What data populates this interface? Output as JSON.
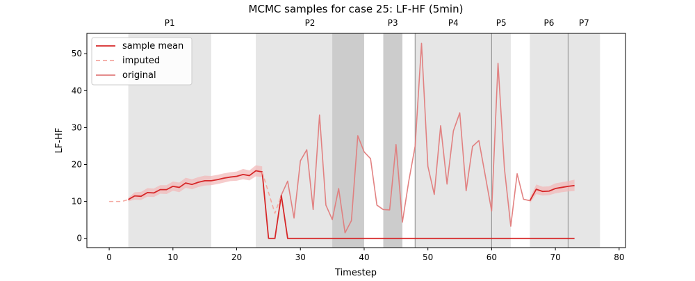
{
  "chart_data": {
    "type": "line",
    "title": "MCMC samples for case 25: LF-HF (5min)",
    "xlabel": "Timestep",
    "ylabel": "LF-HF",
    "xlim": [
      -3.5,
      81
    ],
    "ylim": [
      -2.5,
      55.5
    ],
    "xticks": [
      0,
      10,
      20,
      30,
      40,
      50,
      60,
      70,
      80
    ],
    "yticks": [
      0,
      10,
      20,
      30,
      40,
      50
    ],
    "grid": false,
    "legend_position": "top-left",
    "legend": [
      {
        "label": "sample mean",
        "style": "solid",
        "color": "#d62728"
      },
      {
        "label": "imputed",
        "style": "dashed",
        "color": "#f4a8a0"
      },
      {
        "label": "original",
        "style": "solid",
        "color": "#e07b7b"
      }
    ],
    "phases": [
      {
        "label": "P1",
        "x_start": 3,
        "x_end": 16
      },
      {
        "label": "P2",
        "x_start": 23,
        "x_end": 40
      },
      {
        "label": "P3",
        "x_start": 43,
        "x_end": 46
      },
      {
        "label": "P4",
        "x_start": 48,
        "x_end": 60
      },
      {
        "label": "P5",
        "x_start": 60,
        "x_end": 63
      },
      {
        "label": "P6",
        "x_start": 66,
        "x_end": 72
      },
      {
        "label": "P7",
        "x_start": 72,
        "x_end": 77
      }
    ],
    "dark_bands": [
      [
        35,
        40
      ],
      [
        43,
        46
      ]
    ],
    "phase_lines": [
      48,
      60,
      72
    ],
    "series": [
      {
        "name": "sample mean",
        "role": "mean",
        "color": "#d62728",
        "x": [
          3,
          4,
          5,
          6,
          7,
          8,
          9,
          10,
          11,
          12,
          13,
          14,
          15,
          16,
          17,
          18,
          19,
          20,
          21,
          22,
          23,
          24,
          25,
          26,
          27,
          28,
          29,
          30,
          31,
          32,
          33,
          34,
          35,
          36,
          37,
          38,
          39,
          40,
          41,
          42,
          43,
          44,
          45,
          46,
          47,
          48,
          49,
          50,
          51,
          52,
          53,
          54,
          55,
          56,
          57,
          58,
          59,
          60,
          61,
          62,
          63,
          64,
          65,
          66,
          67,
          68,
          69,
          70,
          71,
          72,
          73
        ],
        "y": [
          10.5,
          11.5,
          11.4,
          12.4,
          12.3,
          13.2,
          13.2,
          14.1,
          13.8,
          15.0,
          14.6,
          15.2,
          15.6,
          15.6,
          15.9,
          16.3,
          16.6,
          16.8,
          17.3,
          17.0,
          18.3,
          18.0,
          0.0,
          0.0,
          11.7,
          0.0,
          0,
          0,
          0,
          0,
          0,
          0,
          0,
          0,
          0,
          0,
          0,
          0,
          0,
          0,
          0,
          0,
          0,
          0,
          0,
          0,
          0,
          0,
          0,
          0,
          0,
          0,
          0,
          0,
          0,
          0,
          0,
          0,
          0,
          0,
          0,
          0,
          0,
          0,
          0,
          0,
          0,
          0,
          0,
          0,
          0
        ],
        "x2": [
          66,
          67,
          68,
          69,
          70,
          71,
          72,
          73
        ],
        "y2": [
          10.2,
          13.3,
          12.7,
          12.8,
          13.5,
          13.8,
          14.1,
          14.3
        ]
      },
      {
        "name": "imputed",
        "role": "imputed",
        "color": "#f4a8a0",
        "x": [
          0,
          2,
          3
        ],
        "y": [
          10.0,
          10.0,
          10.5
        ],
        "x2": [
          24,
          26,
          27
        ],
        "y2": [
          18.0,
          6.8,
          11.7
        ]
      },
      {
        "name": "original",
        "role": "original",
        "color": "#e07b7b",
        "x": [
          27,
          28,
          29,
          30,
          31,
          32,
          33,
          34,
          35,
          36,
          37,
          38,
          39,
          40,
          41,
          42,
          43,
          44,
          45,
          46,
          47,
          48,
          49,
          50,
          51,
          52,
          53,
          54,
          55,
          56,
          57,
          58,
          59,
          60,
          61,
          62,
          63,
          64,
          65,
          66
        ],
        "y": [
          11.7,
          15.5,
          5.5,
          21.0,
          24.0,
          7.8,
          33.4,
          9.0,
          5.1,
          13.5,
          1.5,
          4.8,
          27.8,
          23.4,
          21.6,
          9.0,
          7.8,
          7.7,
          25.4,
          4.4,
          15.5,
          25.0,
          52.8,
          19.5,
          11.9,
          30.5,
          14.7,
          29.1,
          34.0,
          12.9,
          24.9,
          26.5,
          17.0,
          7.4,
          47.4,
          19.0,
          3.3,
          17.5,
          10.6,
          10.2
        ]
      }
    ],
    "uncertainty_band": {
      "color": "#f2b6b6",
      "x": [
        3,
        4,
        5,
        6,
        7,
        8,
        9,
        10,
        11,
        12,
        13,
        14,
        15,
        16,
        17,
        18,
        19,
        20,
        21,
        22,
        23,
        24
      ],
      "lower": [
        10.0,
        10.5,
        10.4,
        11.3,
        11.2,
        12.1,
        12.0,
        12.9,
        12.5,
        13.7,
        13.3,
        13.9,
        14.3,
        14.4,
        14.7,
        15.1,
        15.5,
        15.6,
        16.0,
        15.7,
        16.8,
        16.6
      ],
      "upper": [
        11.0,
        12.5,
        12.6,
        13.6,
        13.5,
        14.4,
        14.4,
        15.4,
        15.1,
        16.4,
        16.0,
        16.6,
        17.0,
        16.9,
        17.2,
        17.6,
        17.9,
        18.1,
        18.8,
        18.4,
        19.8,
        19.5
      ],
      "x2": [
        66,
        67,
        68,
        69,
        70,
        71,
        72,
        73
      ],
      "lower2": [
        9.5,
        12.0,
        11.6,
        11.7,
        12.2,
        12.5,
        12.7,
        12.8
      ],
      "upper2": [
        11.0,
        14.6,
        14.0,
        14.1,
        14.9,
        15.2,
        15.5,
        15.9
      ]
    }
  }
}
